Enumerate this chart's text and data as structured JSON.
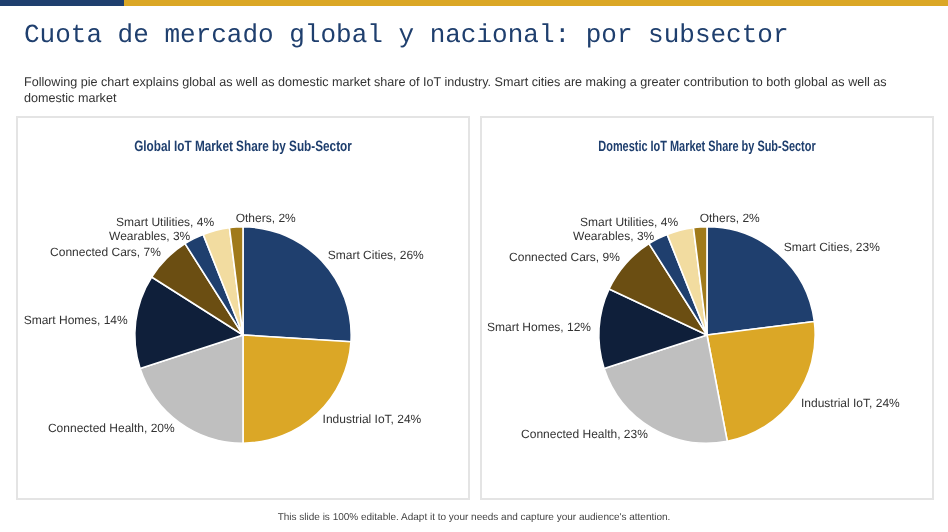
{
  "chart_data": [
    {
      "type": "other",
      "title": "Cuota de mercado global y nacional: por subsector",
      "subtitle": "Following pie chart explains global as well as domestic market share of IoT industry. Smart cities are making a greater contribution to both global as well as domestic market",
      "annotations": [
        "This slide is 100% editable. Adapt it to your needs and capture your audience's attention."
      ]
    },
    {
      "type": "pie",
      "title": "Global IoT Market Share by Sub-Sector",
      "categories": [
        "Smart Cities",
        "Industrial IoT",
        "Connected Health",
        "Smart Homes",
        "Connected Cars",
        "Wearables",
        "Smart Utilities",
        "Others"
      ],
      "values": [
        26,
        24,
        20,
        14,
        7,
        3,
        4,
        2
      ],
      "value_labels": [
        "26%",
        "24%",
        "20%",
        "14%",
        "7%",
        "3%",
        "4%",
        "2%"
      ],
      "colors": [
        "#1f3f6e",
        "#dba726",
        "#bfbfbf",
        "#0f1f3a",
        "#6b4e12",
        "#1f3f6e",
        "#f2dca0",
        "#a07a1a"
      ],
      "legend": false
    },
    {
      "type": "pie",
      "title": "Domestic IoT Market Share by Sub-Sector",
      "categories": [
        "Smart Cities",
        "Industrial IoT",
        "Connected Health",
        "Smart Homes",
        "Connected Cars",
        "Wearables",
        "Smart Utilities",
        "Others"
      ],
      "values": [
        23,
        24,
        23,
        12,
        9,
        3,
        4,
        2
      ],
      "value_labels": [
        "23%",
        "24%",
        "23%",
        "12%",
        "9%",
        "3%",
        "4%",
        "2%"
      ],
      "colors": [
        "#1f3f6e",
        "#dba726",
        "#bfbfbf",
        "#0f1f3a",
        "#6b4e12",
        "#1f3f6e",
        "#f2dca0",
        "#a07a1a"
      ],
      "legend": false
    }
  ]
}
